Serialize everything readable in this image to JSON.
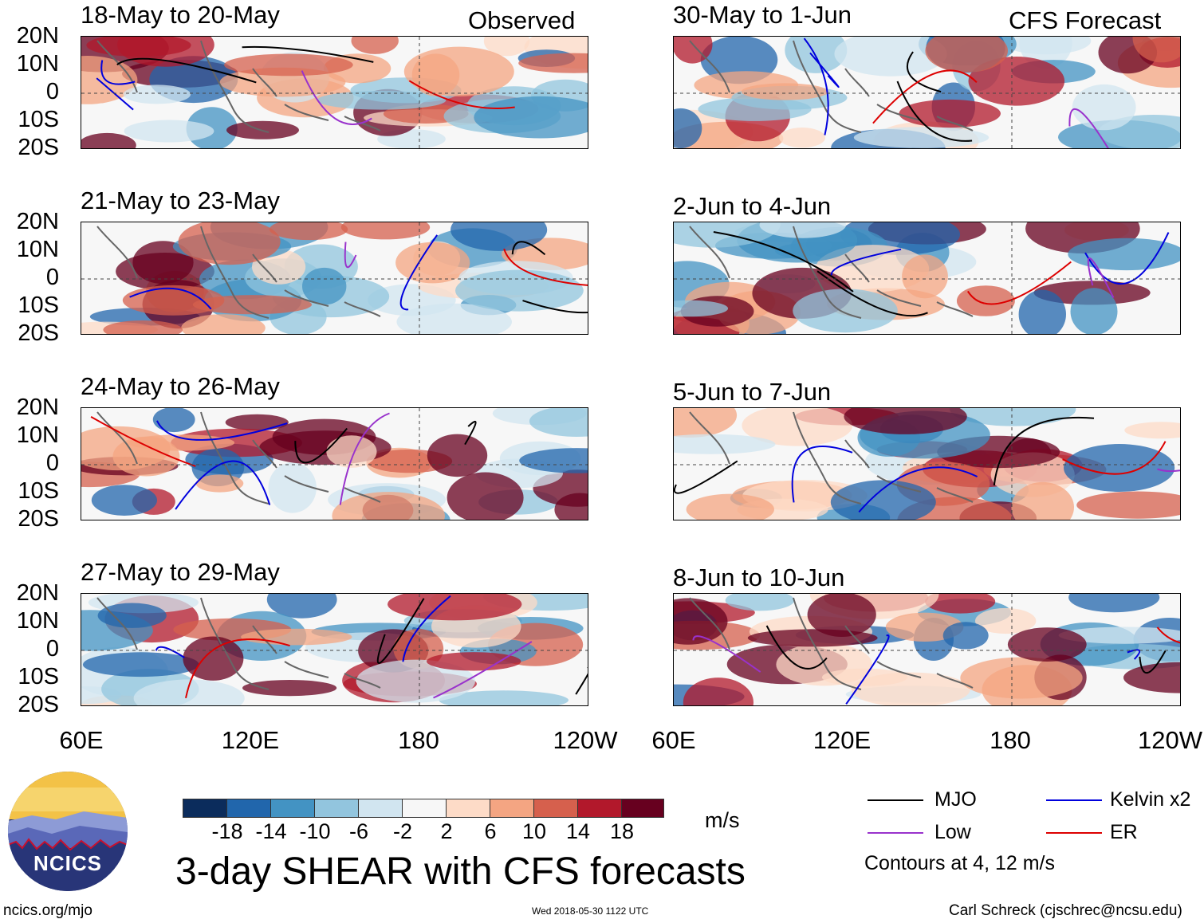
{
  "headers": {
    "observed": "Observed",
    "forecast": "CFS Forecast"
  },
  "panels_left": [
    {
      "title": "18-May to 20-May"
    },
    {
      "title": "21-May to 23-May"
    },
    {
      "title": "24-May to 26-May"
    },
    {
      "title": "27-May to 29-May"
    }
  ],
  "panels_right": [
    {
      "title": "30-May to 1-Jun"
    },
    {
      "title": "2-Jun to 4-Jun"
    },
    {
      "title": "5-Jun to 7-Jun"
    },
    {
      "title": "8-Jun to 10-Jun"
    }
  ],
  "y_ticks": [
    "20N",
    "10N",
    "0",
    "10S",
    "20S"
  ],
  "x_ticks": [
    "60E",
    "120E",
    "180",
    "120W"
  ],
  "colorbar": {
    "labels": [
      "-18",
      "-14",
      "-10",
      "-6",
      "-2",
      "2",
      "6",
      "10",
      "14",
      "18"
    ],
    "colors": [
      "#0b2c5c",
      "#2166ac",
      "#4393c3",
      "#92c5de",
      "#d1e5f0",
      "#f7f7f7",
      "#fddbc7",
      "#f4a582",
      "#d6604d",
      "#b2182b",
      "#67001f"
    ],
    "units": "m/s"
  },
  "main_title": "3-day SHEAR with CFS forecasts",
  "logo": {
    "text": "NCICS"
  },
  "legend": {
    "items": [
      {
        "label": "MJO",
        "color": "#000000"
      },
      {
        "label": "Kelvin x2",
        "color": "#0000dd"
      },
      {
        "label": "Low",
        "color": "#9932cc"
      },
      {
        "label": "ER",
        "color": "#dd0000"
      }
    ],
    "note": "Contours at 4, 12 m/s"
  },
  "footer": {
    "site": "ncics.org/mjo",
    "timestamp": "Wed 2018-05-30 1122 UTC",
    "author": "Carl Schreck (cjschrec@ncsu.edu)"
  }
}
